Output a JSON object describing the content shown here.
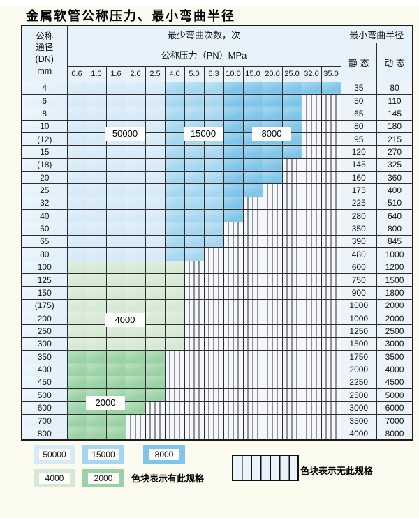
{
  "page": {
    "title": "金属软管公称压力、最小弯曲半径"
  },
  "table": {
    "dn_header": [
      "公称",
      "通径",
      "(DN)",
      "mm"
    ],
    "cycles_header": "最少弯曲次数，次",
    "radius_header": "最小弯曲半径",
    "pressure_header": "公称压力（PN）MPa",
    "static_header": "静 态",
    "dynamic_header": "动 态",
    "pressure_columns": [
      "0.6",
      "1.0",
      "1.6",
      "2.0",
      "2.5",
      "4.0",
      "5.0",
      "6.3",
      "10.0",
      "15.0",
      "20.0",
      "25.0",
      "32.0",
      "35.0"
    ],
    "rows": [
      {
        "dn": "4",
        "through": "35.0",
        "band": "blue",
        "static": "35",
        "dynamic": "80"
      },
      {
        "dn": "6",
        "through": "25.0",
        "band": "blue",
        "static": "50",
        "dynamic": "110"
      },
      {
        "dn": "8",
        "through": "25.0",
        "band": "blue",
        "static": "65",
        "dynamic": "145"
      },
      {
        "dn": "10",
        "through": "25.0",
        "band": "blue",
        "static": "80",
        "dynamic": "180"
      },
      {
        "dn": "(12)",
        "through": "25.0",
        "band": "blue",
        "static": "95",
        "dynamic": "215"
      },
      {
        "dn": "15",
        "through": "25.0",
        "band": "blue",
        "static": "120",
        "dynamic": "270"
      },
      {
        "dn": "(18)",
        "through": "20.0",
        "band": "blue",
        "static": "145",
        "dynamic": "325"
      },
      {
        "dn": "20",
        "through": "20.0",
        "band": "blue",
        "static": "160",
        "dynamic": "360"
      },
      {
        "dn": "25",
        "through": "15.0",
        "band": "blue",
        "static": "175",
        "dynamic": "400"
      },
      {
        "dn": "32",
        "through": "10.0",
        "band": "blue",
        "static": "225",
        "dynamic": "510"
      },
      {
        "dn": "40",
        "through": "10.0",
        "band": "blue",
        "static": "280",
        "dynamic": "640"
      },
      {
        "dn": "50",
        "through": "6.3",
        "band": "blue",
        "static": "350",
        "dynamic": "800"
      },
      {
        "dn": "65",
        "through": "6.3",
        "band": "blue",
        "static": "390",
        "dynamic": "845"
      },
      {
        "dn": "80",
        "through": "5.0",
        "band": "blue",
        "static": "480",
        "dynamic": "1000"
      },
      {
        "dn": "100",
        "through": "4.0",
        "band": "green_light",
        "static": "600",
        "dynamic": "1200"
      },
      {
        "dn": "125",
        "through": "4.0",
        "band": "green_light",
        "static": "750",
        "dynamic": "1500"
      },
      {
        "dn": "150",
        "through": "4.0",
        "band": "green_light",
        "static": "900",
        "dynamic": "1800"
      },
      {
        "dn": "(175)",
        "through": "4.0",
        "band": "green_light",
        "static": "1000",
        "dynamic": "2000"
      },
      {
        "dn": "200",
        "through": "4.0",
        "band": "green_light",
        "static": "1000",
        "dynamic": "2000"
      },
      {
        "dn": "250",
        "through": "4.0",
        "band": "green_light",
        "static": "1250",
        "dynamic": "2500"
      },
      {
        "dn": "300",
        "through": "4.0",
        "band": "green_light",
        "static": "1500",
        "dynamic": "3000"
      },
      {
        "dn": "350",
        "through": "2.5",
        "band": "green_mid",
        "static": "1750",
        "dynamic": "3500"
      },
      {
        "dn": "400",
        "through": "2.5",
        "band": "green_mid",
        "static": "2000",
        "dynamic": "4000"
      },
      {
        "dn": "450",
        "through": "2.5",
        "band": "green_mid",
        "static": "2250",
        "dynamic": "4500"
      },
      {
        "dn": "500",
        "through": "2.5",
        "band": "green_mid",
        "static": "2500",
        "dynamic": "5000"
      },
      {
        "dn": "600",
        "through": "2.0",
        "band": "green_mid",
        "static": "3000",
        "dynamic": "6000"
      },
      {
        "dn": "700",
        "through": "1.6",
        "band": "green_mid",
        "static": "3500",
        "dynamic": "7000"
      },
      {
        "dn": "800",
        "through": "1.6",
        "band": "green_mid",
        "static": "4000",
        "dynamic": "8000"
      }
    ],
    "cycle_bands": {
      "blue_light_cols": [
        "0.6",
        "1.0",
        "1.6",
        "2.0",
        "2.5"
      ],
      "blue_mid_cols": [
        "4.0",
        "5.0",
        "6.3"
      ],
      "blue_dark_cols": [
        "10.0",
        "15.0",
        "20.0",
        "25.0",
        "32.0",
        "35.0"
      ]
    }
  },
  "overlays": [
    {
      "label": "50000",
      "cols": [
        "1.6",
        "2.0"
      ],
      "rows": [
        "10",
        "(12)"
      ]
    },
    {
      "label": "15000",
      "cols": [
        "5.0",
        "6.3"
      ],
      "rows": [
        "10",
        "(12)"
      ]
    },
    {
      "label": "8000",
      "cols": [
        "15.0",
        "25.0"
      ],
      "rows": [
        "10",
        "(12)"
      ]
    },
    {
      "label": "4000",
      "cols": [
        "1.6",
        "2.0"
      ],
      "rows": [
        "200"
      ]
    },
    {
      "label": "2000",
      "cols": [
        "1.0",
        "1.6"
      ],
      "rows": [
        "500",
        "600"
      ]
    }
  ],
  "legend": {
    "items": [
      {
        "label": "50000",
        "color": "#d6eaf7"
      },
      {
        "label": "15000",
        "color": "#a6d7f0"
      },
      {
        "label": "8000",
        "color": "#7fc5e9"
      },
      {
        "label": "4000",
        "color": "#d6e9d4"
      },
      {
        "label": "2000",
        "color": "#9ad2a5"
      }
    ],
    "has_spec_text": "色块表示有此规格",
    "no_spec_text": "色块表示无此规格"
  },
  "colors": {
    "page_bg": "#fbfbef",
    "header_bg": "#e8f2fa",
    "dn_col_bg": "#e2f0fa",
    "value_col_bg": "#ecf4fa",
    "no_spec_bg": "#f4f8fc",
    "grid_line": "#2d2d2d"
  }
}
